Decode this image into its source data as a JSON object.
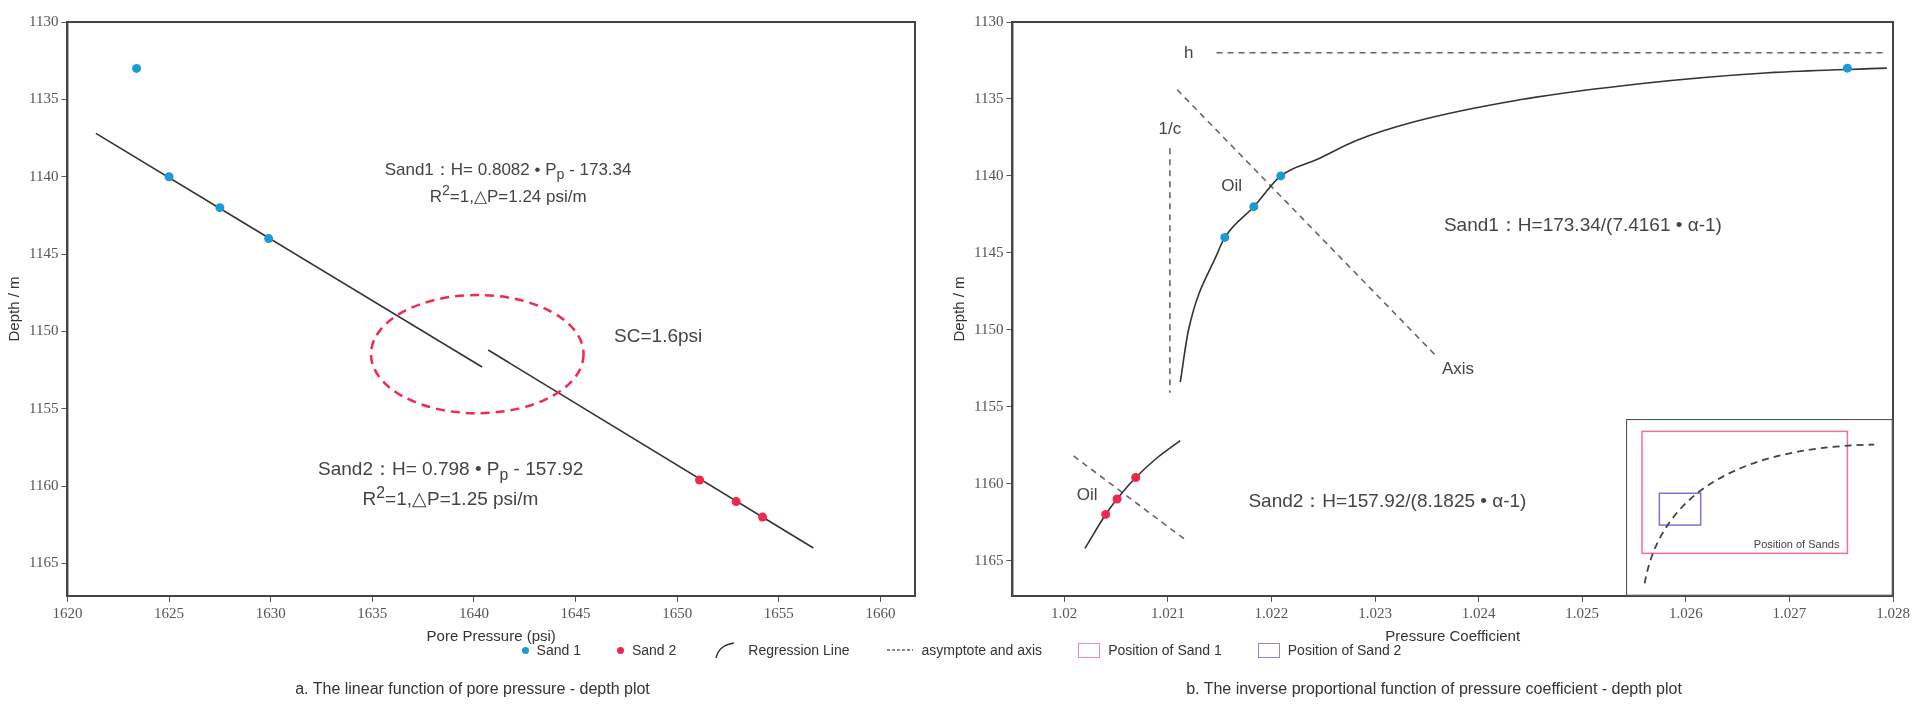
{
  "chart_data": [
    {
      "type": "scatter",
      "title": "a. The linear function of pore pressure - depth plot",
      "xlabel": "Pore Pressure (psi)",
      "ylabel": "Depth / m",
      "xlim": [
        1620,
        1661.7
      ],
      "xticks": [
        1620,
        1625,
        1630,
        1635,
        1640,
        1645,
        1650,
        1655,
        1660
      ],
      "ylim": [
        1167.1,
        1130
      ],
      "yticks": [
        1130,
        1135,
        1140,
        1145,
        1150,
        1155,
        1160,
        1165
      ],
      "legend": "bottom",
      "annotations": [
        "Sand1：H= 0.8082 • P$_{p}$ - 173.34",
        "R$^{2}$=1,△P=1.24 psi/m",
        "SC=1.6psi",
        "Sand2：H= 0.798 • P$_{p}$ - 157.92",
        "R$^{2}$=1,△P=1.25 psi/m"
      ],
      "series": [
        {
          "name": "Sand 1",
          "color": "#1a9bd7",
          "marker": "circle",
          "x": [
            1623.4,
            1625,
            1627.5,
            1629.9
          ],
          "values": [
            1133,
            1140,
            1142,
            1144
          ]
        },
        {
          "name": "Sand 2",
          "color": "#f0264f",
          "marker": "circle",
          "x": [
            1651.1,
            1652.9,
            1654.2
          ],
          "values": [
            1159.6,
            1161,
            1162
          ]
        },
        {
          "name": "Regression Line",
          "type": "line",
          "marker": "none",
          "color": "#333333",
          "x": [
            1621.4,
            1640.4
          ],
          "values": [
            1137.2,
            1152.3
          ]
        },
        {
          "type": "line",
          "marker": "none",
          "color": "#333333",
          "x": [
            1640.7,
            1656.7
          ],
          "values": [
            1151.2,
            1164
          ]
        }
      ]
    },
    {
      "type": "scatter",
      "title": "b. The inverse proportional function of pressure coefficient - depth plot",
      "xlabel": "Pressure Coefficient",
      "ylabel": "Depth / m",
      "xlim": [
        1.0195,
        1.028
      ],
      "xticks": [
        1.02,
        1.021,
        1.022,
        1.023,
        1.024,
        1.025,
        1.026,
        1.027,
        1.028
      ],
      "ylim": [
        1167.3,
        1130
      ],
      "yticks": [
        1130,
        1135,
        1140,
        1145,
        1150,
        1155,
        1160,
        1165
      ],
      "legend": "bottom",
      "annotations": [
        "h",
        "1/c",
        "Axis",
        "Oil",
        "Oil",
        "Sand1：H=173.34/(7.4161 • α-1)",
        "Sand2：H=157.92/(8.1825 • α-1)",
        "Position of Sands",
        "Position of Sand 1",
        "Position of Sand 2"
      ],
      "series": [
        {
          "color": "#1a9bd7",
          "marker": "circle",
          "x": [
            1.02155,
            1.02183,
            1.02209,
            1.02756
          ],
          "values": [
            1144,
            1142,
            1140,
            1133
          ]
        },
        {
          "color": "#f0264f",
          "marker": "circle",
          "x": [
            1.0204,
            1.02051,
            1.02069
          ],
          "values": [
            1162,
            1161,
            1159.6
          ]
        },
        {
          "type": "line",
          "marker": "none",
          "color": "#333333",
          "x": [
            1.02112,
            1.0212,
            1.02148,
            1.02155,
            1.02183,
            1.02209,
            1.02245,
            1.02282,
            1.02337,
            1.02436,
            1.02558,
            1.0268,
            1.02794
          ],
          "values": [
            1153.4,
            1150,
            1145,
            1144,
            1142,
            1140,
            1138.9,
            1137.7,
            1136.5,
            1135.1,
            1134,
            1133.3,
            1133
          ]
        },
        {
          "type": "line",
          "marker": "none",
          "color": "#333333",
          "x": [
            1.0202,
            1.0204,
            1.02051,
            1.02069,
            1.0209,
            1.02112
          ],
          "values": [
            1164.2,
            1162,
            1161,
            1159.6,
            1158.3,
            1157.2
          ]
        },
        {
          "name": "asymptote and axis",
          "type": "line",
          "marker": "none",
          "line_style": "dashed",
          "color": "#666666",
          "x": [
            1.02147,
            1.0279
          ],
          "values": [
            1132,
            1132
          ]
        },
        {
          "type": "line",
          "marker": "none",
          "line_style": "dashed",
          "color": "#666666",
          "x": [
            1.02102,
            1.02102
          ],
          "values": [
            1138.2,
            1154.1
          ]
        },
        {
          "type": "line",
          "marker": "none",
          "line_style": "dashed",
          "color": "#666666",
          "x": [
            1.02109,
            1.02359
          ],
          "values": [
            1134.4,
            1151.7
          ]
        },
        {
          "type": "line",
          "marker": "none",
          "line_style": "dashed",
          "color": "#666666",
          "x": [
            1.02009,
            1.02118
          ],
          "values": [
            1158.2,
            1163.7
          ]
        }
      ]
    }
  ]
}
